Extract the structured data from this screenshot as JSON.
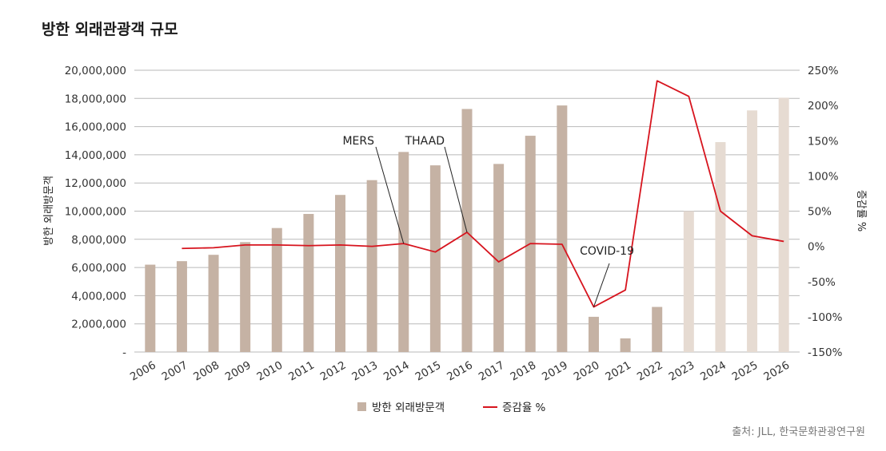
{
  "title": "방한 외래관광객 규모",
  "source": "출처: JLL, 한국문화관광연구원",
  "chart_data": {
    "type": "bar",
    "categories": [
      "2006",
      "2007",
      "2008",
      "2009",
      "2010",
      "2011",
      "2012",
      "2013",
      "2014",
      "2015",
      "2016",
      "2017",
      "2018",
      "2019",
      "2020",
      "2021",
      "2022",
      "2023",
      "2024",
      "2025",
      "2026"
    ],
    "series": [
      {
        "name": "방한 외래방문객",
        "type": "bar",
        "axis": "left",
        "values": [
          6200000,
          6450000,
          6900000,
          7800000,
          8800000,
          9800000,
          11150000,
          12200000,
          14200000,
          13250000,
          17250000,
          13350000,
          15350000,
          17500000,
          2500000,
          970000,
          3200000,
          10000000,
          14900000,
          17150000,
          18050000
        ],
        "colors": [
          "#c5b2a4",
          "#c5b2a4",
          "#c5b2a4",
          "#c5b2a4",
          "#c5b2a4",
          "#c5b2a4",
          "#c5b2a4",
          "#c5b2a4",
          "#c5b2a4",
          "#c5b2a4",
          "#c5b2a4",
          "#c5b2a4",
          "#c5b2a4",
          "#c5b2a4",
          "#c5b2a4",
          "#c5b2a4",
          "#c5b2a4",
          "#e6dbd2",
          "#e6dbd2",
          "#e6dbd2",
          "#e6dbd2"
        ]
      },
      {
        "name": "증감율 %",
        "type": "line",
        "axis": "right",
        "color": "#d7141e",
        "values": [
          null,
          -3,
          -2,
          2,
          2,
          1,
          2,
          0,
          4,
          -8,
          20,
          -22,
          4,
          3,
          -86,
          -62,
          235,
          213,
          50,
          15,
          7
        ]
      }
    ],
    "ylabel": "방한 외래방문객",
    "ylabel_right": "증감률 %",
    "ylim": [
      0,
      20000000
    ],
    "ylim_right": [
      -150,
      250
    ],
    "yticks": [
      "-",
      "2,000,000",
      "4,000,000",
      "6,000,000",
      "8,000,000",
      "10,000,000",
      "12,000,000",
      "14,000,000",
      "16,000,000",
      "18,000,000",
      "20,000,000"
    ],
    "yticks_right": [
      "-150%",
      "-100%",
      "-50%",
      "0%",
      "50%",
      "100%",
      "150%",
      "200%",
      "250%"
    ],
    "grid": true,
    "legend": "bottom-center",
    "annotations": [
      {
        "text": "MERS",
        "target_index": 8
      },
      {
        "text": "THAAD",
        "target_index": 10
      },
      {
        "text": "COVID-19",
        "target_index": 14
      }
    ]
  }
}
